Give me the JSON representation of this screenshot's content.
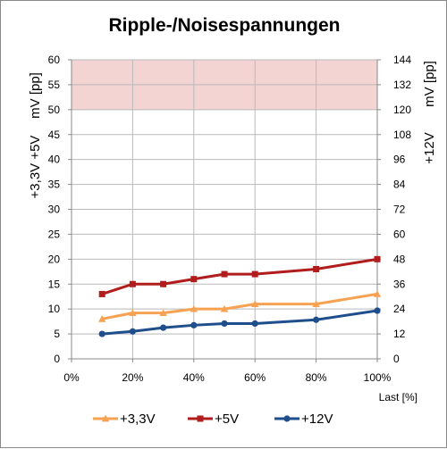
{
  "chart_data": {
    "type": "line",
    "title": "Ripple-/Noisespannungen",
    "xlabel": "Last [%]",
    "ylabel_left_top": "mV [pp]",
    "ylabel_left_bottom": "+3,3V +5V",
    "ylabel_right_top": "mV [pp]",
    "ylabel_right_bottom": "+12V",
    "xlim": [
      0,
      100
    ],
    "ylim_left": [
      0,
      60
    ],
    "ylim_right": [
      0,
      144
    ],
    "x_ticks": [
      0,
      20,
      40,
      60,
      80,
      100
    ],
    "x_tick_labels": [
      "0%",
      "20%",
      "40%",
      "60%",
      "80%",
      "100%"
    ],
    "y_left_ticks": [
      0,
      5,
      10,
      15,
      20,
      25,
      30,
      35,
      40,
      45,
      50,
      55,
      60
    ],
    "y_right_ticks": [
      0,
      12,
      24,
      36,
      48,
      60,
      72,
      84,
      96,
      108,
      120,
      132,
      144
    ],
    "limit_band": {
      "from": 50,
      "to": 60,
      "color": "#f4d3d3"
    },
    "grid": true,
    "legend_position": "bottom",
    "series": [
      {
        "name": "+3,3V",
        "axis": "left",
        "color": "#f7a252",
        "marker": "triangle",
        "x": [
          10,
          20,
          30,
          40,
          50,
          60,
          80,
          100
        ],
        "values": [
          8,
          9.2,
          9.2,
          10,
          10,
          11,
          11,
          13
        ]
      },
      {
        "name": "+5V",
        "axis": "left",
        "color": "#b11c1c",
        "marker": "square",
        "x": [
          10,
          20,
          30,
          40,
          50,
          60,
          80,
          100
        ],
        "values": [
          13,
          15,
          15,
          16,
          17,
          17,
          18,
          20
        ]
      },
      {
        "name": "+12V",
        "axis": "right",
        "color": "#1f4e8c",
        "marker": "circle",
        "x": [
          10,
          20,
          30,
          40,
          50,
          60,
          80,
          100
        ],
        "values": [
          12,
          13.2,
          15,
          16.2,
          17,
          17,
          18.8,
          23.2
        ]
      }
    ]
  }
}
